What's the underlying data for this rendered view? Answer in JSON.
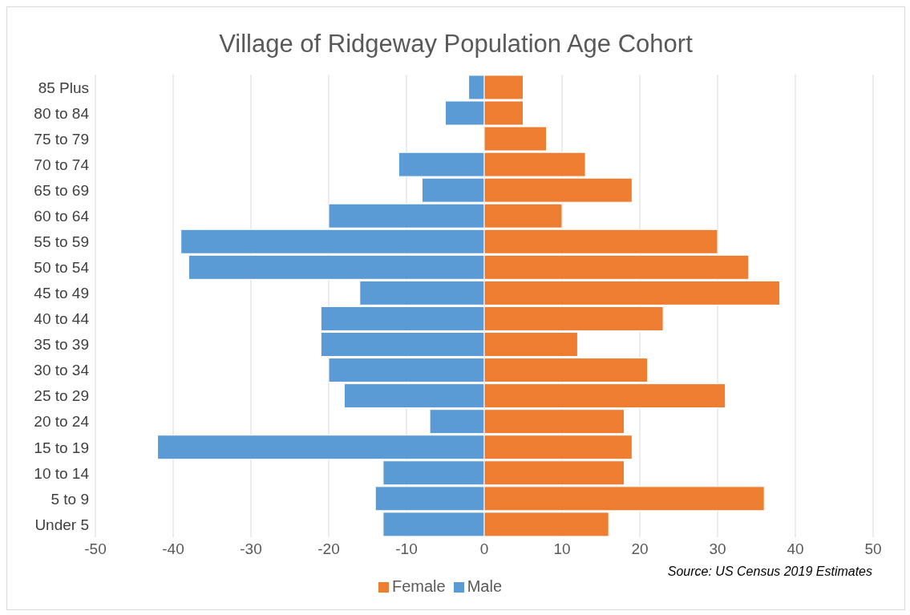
{
  "chart_data": {
    "type": "bar",
    "orientation": "horizontal",
    "stacked": true,
    "title": "Village of Ridgeway Population Age Cohort",
    "categories": [
      "85 Plus",
      "80 to 84",
      "75 to 79",
      "70 to 74",
      "65 to 69",
      "60 to 64",
      "55 to 59",
      "50 to 54",
      "45 to 49",
      "40 to 44",
      "35 to 39",
      "30 to 34",
      "25 to 29",
      "20 to 24",
      "15 to 19",
      "10 to 14",
      "5 to 9",
      "Under 5"
    ],
    "series": [
      {
        "name": "Male",
        "color": "#5b9bd5",
        "values": [
          -2,
          -5,
          0,
          -11,
          -8,
          -20,
          -39,
          -38,
          -16,
          -21,
          -21,
          -20,
          -18,
          -7,
          -42,
          -13,
          -14,
          -13
        ]
      },
      {
        "name": "Female",
        "color": "#ed7d31",
        "values": [
          5,
          5,
          8,
          13,
          19,
          10,
          30,
          34,
          38,
          23,
          12,
          21,
          31,
          18,
          19,
          18,
          36,
          16
        ]
      }
    ],
    "xlim": [
      -50,
      50
    ],
    "xticks": [
      -50,
      -40,
      -30,
      -20,
      -10,
      0,
      10,
      20,
      30,
      40,
      50
    ],
    "grid": "x",
    "legend": "bottom",
    "annotations": [
      "Source: US Census 2019 Estimates"
    ]
  }
}
